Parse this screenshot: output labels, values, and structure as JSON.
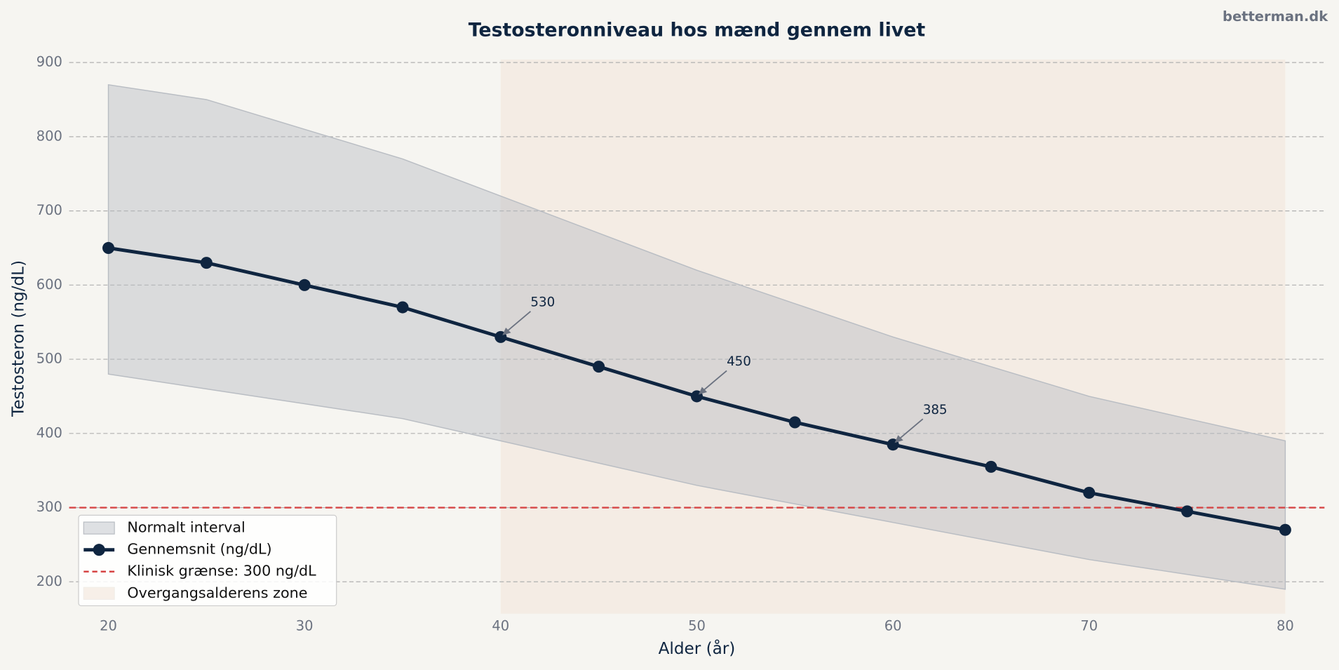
{
  "chart_data": {
    "type": "line",
    "title": "Testosteronniveau hos mænd gennem livet",
    "watermark": "betterman.dk",
    "x_label": "Alder (år)",
    "y_label": "Testosteron (ng/dL)",
    "x": [
      20,
      25,
      30,
      35,
      40,
      45,
      50,
      55,
      60,
      65,
      70,
      75,
      80
    ],
    "series": [
      {
        "name": "Gennemsnit (ng/dL)",
        "color": "#0f2540",
        "values": [
          650,
          630,
          600,
          570,
          530,
          490,
          450,
          415,
          385,
          355,
          320,
          295,
          270
        ]
      }
    ],
    "band": {
      "name": "Normalt interval",
      "color": "#b9bdc3",
      "upper": [
        870,
        850,
        810,
        770,
        720,
        670,
        620,
        575,
        530,
        490,
        450,
        420,
        390
      ],
      "lower": [
        480,
        460,
        440,
        420,
        390,
        360,
        330,
        305,
        280,
        255,
        230,
        210,
        190
      ]
    },
    "threshold": {
      "name": "Klinisk grænse: 300 ng/dL",
      "value": 300,
      "color": "#d64545"
    },
    "zone": {
      "name": "Overgangsalderens zone",
      "start": 40,
      "end": 80,
      "color": "#f3e4d8"
    },
    "annotations": [
      {
        "x": 40,
        "value": 530
      },
      {
        "x": 50,
        "value": 450
      },
      {
        "x": 60,
        "value": 385
      }
    ],
    "xlim": [
      18,
      82
    ],
    "ylim": [
      157,
      904
    ],
    "xticks": [
      20,
      30,
      40,
      50,
      60,
      70,
      80
    ],
    "yticks": [
      200,
      300,
      400,
      500,
      600,
      700,
      800,
      900
    ],
    "grid": true,
    "legend": "lower left"
  }
}
